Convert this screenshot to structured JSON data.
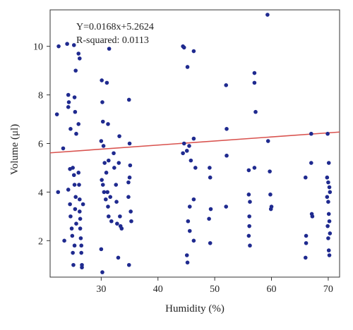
{
  "chart_data": {
    "type": "scatter",
    "xlabel": "Humidity (%)",
    "ylabel": "Volume (μl)",
    "xlim": [
      21,
      72
    ],
    "ylim": [
      0.5,
      11.5
    ],
    "xticks": [
      30,
      40,
      50,
      60,
      70
    ],
    "yticks": [
      2,
      4,
      6,
      8,
      10
    ],
    "grid": false,
    "legend": "none",
    "annotations": [
      "Y=0.0168x+5.2624",
      "R-squared: 0.0113"
    ],
    "trendline": {
      "slope": 0.0168,
      "intercept": 5.2624
    },
    "colors": {
      "points": "#1f2a8f",
      "trendline": "#d9534f",
      "axes": "#333333"
    },
    "points": [
      [
        22.5,
        10.0
      ],
      [
        24.0,
        10.1
      ],
      [
        25.2,
        10.05
      ],
      [
        25.5,
        9.0
      ],
      [
        26.0,
        9.7
      ],
      [
        26.2,
        9.5
      ],
      [
        22.2,
        7.2
      ],
      [
        23.3,
        5.8
      ],
      [
        24.2,
        8.0
      ],
      [
        24.3,
        7.7
      ],
      [
        24.2,
        7.5
      ],
      [
        25.3,
        7.9
      ],
      [
        24.6,
        6.6
      ],
      [
        25.6,
        6.4
      ],
      [
        26.0,
        6.8
      ],
      [
        25.4,
        7.3
      ],
      [
        22.4,
        4.0
      ],
      [
        24.2,
        4.1
      ],
      [
        24.5,
        4.95
      ],
      [
        25.0,
        5.0
      ],
      [
        25.2,
        4.7
      ],
      [
        25.3,
        4.3
      ],
      [
        23.5,
        2.0
      ],
      [
        24.5,
        3.5
      ],
      [
        24.6,
        3.0
      ],
      [
        24.8,
        2.5
      ],
      [
        24.9,
        2.2
      ],
      [
        25.0,
        1.5
      ],
      [
        25.1,
        1.0
      ],
      [
        25.3,
        1.8
      ],
      [
        25.4,
        3.3
      ],
      [
        25.5,
        3.8
      ],
      [
        25.6,
        2.7
      ],
      [
        26.0,
        4.8
      ],
      [
        26.1,
        4.3
      ],
      [
        26.2,
        3.7
      ],
      [
        26.2,
        3.2
      ],
      [
        26.3,
        2.9
      ],
      [
        26.3,
        2.5
      ],
      [
        26.4,
        2.1
      ],
      [
        26.5,
        1.8
      ],
      [
        26.5,
        1.5
      ],
      [
        26.6,
        1.0
      ],
      [
        26.6,
        0.9
      ],
      [
        26.8,
        3.5
      ],
      [
        30.1,
        8.6
      ],
      [
        31.0,
        8.5
      ],
      [
        31.4,
        9.9
      ],
      [
        30.2,
        7.7
      ],
      [
        30.3,
        6.9
      ],
      [
        31.2,
        6.8
      ],
      [
        30.0,
        6.1
      ],
      [
        30.4,
        5.9
      ],
      [
        31.3,
        5.3
      ],
      [
        30.6,
        5.2
      ],
      [
        30.9,
        4.8
      ],
      [
        31.1,
        4.0
      ],
      [
        30.1,
        4.5
      ],
      [
        30.3,
        4.3
      ],
      [
        30.5,
        4.0
      ],
      [
        30.8,
        3.7
      ],
      [
        31.2,
        3.4
      ],
      [
        31.3,
        3.0
      ],
      [
        30.0,
        1.65
      ],
      [
        30.2,
        0.7
      ],
      [
        31.6,
        3.8
      ],
      [
        31.8,
        2.8
      ],
      [
        32.2,
        5.6
      ],
      [
        32.6,
        4.3
      ],
      [
        32.7,
        3.6
      ],
      [
        33.1,
        5.2
      ],
      [
        33.3,
        3.0
      ],
      [
        33.4,
        2.6
      ],
      [
        33.6,
        2.5
      ],
      [
        32.8,
        2.7
      ],
      [
        32.3,
        5.0
      ],
      [
        33.0,
        1.3
      ],
      [
        33.2,
        6.3
      ],
      [
        34.9,
        7.8
      ],
      [
        35.1,
        5.1
      ],
      [
        35.0,
        4.6
      ],
      [
        34.8,
        4.4
      ],
      [
        34.8,
        3.8
      ],
      [
        35.2,
        3.2
      ],
      [
        35.3,
        2.8
      ],
      [
        34.9,
        1.0
      ],
      [
        35.0,
        6.0
      ],
      [
        44.4,
        10.0
      ],
      [
        44.6,
        9.95
      ],
      [
        46.3,
        9.8
      ],
      [
        45.2,
        9.15
      ],
      [
        44.4,
        5.6
      ],
      [
        44.6,
        6.0
      ],
      [
        45.1,
        5.7
      ],
      [
        45.5,
        5.9
      ],
      [
        45.8,
        5.3
      ],
      [
        46.3,
        6.2
      ],
      [
        46.6,
        5.0
      ],
      [
        45.6,
        3.4
      ],
      [
        46.3,
        3.7
      ],
      [
        45.3,
        2.8
      ],
      [
        45.6,
        2.4
      ],
      [
        45.1,
        1.4
      ],
      [
        45.2,
        1.1
      ],
      [
        46.3,
        2.0
      ],
      [
        49.1,
        5.0
      ],
      [
        49.2,
        4.6
      ],
      [
        49.3,
        3.3
      ],
      [
        49.0,
        2.9
      ],
      [
        49.2,
        1.9
      ],
      [
        52.0,
        8.4
      ],
      [
        52.1,
        6.6
      ],
      [
        52.1,
        5.5
      ],
      [
        52.0,
        3.4
      ],
      [
        56.0,
        3.9
      ],
      [
        56.2,
        3.6
      ],
      [
        56.1,
        3.0
      ],
      [
        56.1,
        2.6
      ],
      [
        56.0,
        2.2
      ],
      [
        56.2,
        1.8
      ],
      [
        56.0,
        4.9
      ],
      [
        57.0,
        8.9
      ],
      [
        57.0,
        8.5
      ],
      [
        57.2,
        7.3
      ],
      [
        57.0,
        5.0
      ],
      [
        59.3,
        11.3
      ],
      [
        59.4,
        6.1
      ],
      [
        59.8,
        3.9
      ],
      [
        59.9,
        3.3
      ],
      [
        59.7,
        4.85
      ],
      [
        60.0,
        3.4
      ],
      [
        66.0,
        4.6
      ],
      [
        66.1,
        2.2
      ],
      [
        66.1,
        1.9
      ],
      [
        66.0,
        1.3
      ],
      [
        67.0,
        6.4
      ],
      [
        67.0,
        5.2
      ],
      [
        67.1,
        3.1
      ],
      [
        67.2,
        3.0
      ],
      [
        69.9,
        6.4
      ],
      [
        70.1,
        5.2
      ],
      [
        69.8,
        4.6
      ],
      [
        70.0,
        4.4
      ],
      [
        70.2,
        4.2
      ],
      [
        70.3,
        4.0
      ],
      [
        69.8,
        3.8
      ],
      [
        70.0,
        3.6
      ],
      [
        70.1,
        3.1
      ],
      [
        70.2,
        2.8
      ],
      [
        69.9,
        2.6
      ],
      [
        70.3,
        2.3
      ],
      [
        70.0,
        2.1
      ],
      [
        70.1,
        1.6
      ],
      [
        70.2,
        1.4
      ]
    ]
  }
}
